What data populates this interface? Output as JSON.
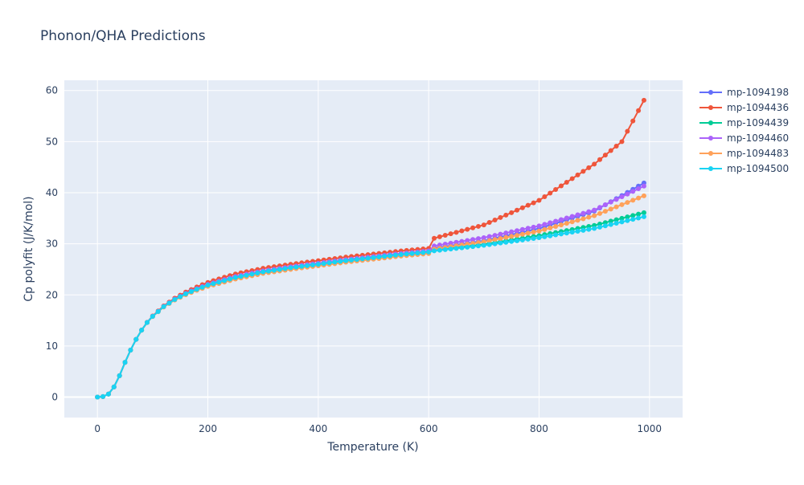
{
  "chart_data": {
    "type": "line",
    "title": "Phonon/QHA Predictions",
    "xlabel": "Temperature (K)",
    "ylabel": "Cp polyfit (J/K/mol)",
    "xlim": [
      -60,
      1060
    ],
    "ylim": [
      -4,
      62
    ],
    "x_ticks": [
      0,
      200,
      400,
      600,
      800,
      1000
    ],
    "y_ticks": [
      0,
      10,
      20,
      30,
      40,
      50,
      60
    ],
    "grid": true,
    "legend_position": "top-right",
    "x_start": 0,
    "x_step": 10,
    "x_end": 990,
    "low_temperature_curve": [
      [
        0,
        0
      ],
      [
        10,
        0.1
      ],
      [
        20,
        0.6
      ],
      [
        30,
        2.0
      ],
      [
        40,
        4.2
      ],
      [
        50,
        6.8
      ],
      [
        60,
        9.2
      ],
      [
        70,
        11.3
      ],
      [
        80,
        13.1
      ],
      [
        90,
        14.6
      ],
      [
        100,
        15.8
      ],
      [
        120,
        17.7
      ],
      [
        140,
        19.1
      ],
      [
        160,
        20.2
      ],
      [
        180,
        21.1
      ],
      [
        200,
        21.9
      ],
      [
        250,
        23.4
      ],
      [
        300,
        24.5
      ],
      [
        350,
        25.3
      ],
      [
        400,
        26.0
      ],
      [
        450,
        26.7
      ],
      [
        500,
        27.3
      ],
      [
        550,
        27.9
      ],
      [
        600,
        28.4
      ]
    ],
    "series": [
      {
        "name": "mp-1094198",
        "color": "#636efa",
        "offset": 0.2,
        "anchors": [
          [
            600,
            29.0
          ],
          [
            700,
            30.6
          ],
          [
            800,
            33.0
          ],
          [
            900,
            36.4
          ],
          [
            990,
            41.9
          ]
        ]
      },
      {
        "name": "mp-1094436",
        "color": "#EF553B",
        "offset": 0.7,
        "anchors": [
          [
            600,
            30.8
          ],
          [
            700,
            33.7
          ],
          [
            800,
            38.5
          ],
          [
            900,
            45.6
          ],
          [
            950,
            50.0
          ],
          [
            990,
            58.1
          ]
        ]
      },
      {
        "name": "mp-1094439",
        "color": "#00cc96",
        "offset": 0.0,
        "anchors": [
          [
            600,
            28.6
          ],
          [
            700,
            29.9
          ],
          [
            800,
            31.6
          ],
          [
            900,
            33.6
          ],
          [
            990,
            36.1
          ]
        ]
      },
      {
        "name": "mp-1094460",
        "color": "#ab63fa",
        "offset": 0.2,
        "anchors": [
          [
            600,
            29.4
          ],
          [
            700,
            31.2
          ],
          [
            800,
            33.5
          ],
          [
            900,
            36.6
          ],
          [
            990,
            41.3
          ]
        ]
      },
      {
        "name": "mp-1094483",
        "color": "#FFA15A",
        "offset": -0.3,
        "anchors": [
          [
            600,
            28.8
          ],
          [
            700,
            30.4
          ],
          [
            800,
            32.5
          ],
          [
            900,
            35.5
          ],
          [
            990,
            39.4
          ]
        ]
      },
      {
        "name": "mp-1094500",
        "color": "#19d3f3",
        "offset": 0.0,
        "anchors": [
          [
            600,
            28.5
          ],
          [
            700,
            29.7
          ],
          [
            800,
            31.2
          ],
          [
            900,
            33.0
          ],
          [
            990,
            35.3
          ]
        ]
      }
    ]
  }
}
